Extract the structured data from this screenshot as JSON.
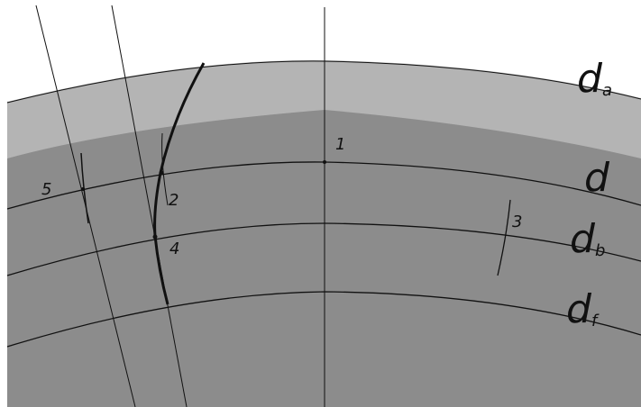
{
  "point_labels": {
    "p1": "1",
    "p2": "2",
    "p3": "3",
    "p4": "4",
    "p5": "5"
  },
  "circle_labels": {
    "tip": {
      "main": "d",
      "sub": "a"
    },
    "pitch": {
      "main": "d",
      "sub": ""
    },
    "base": {
      "main": "d",
      "sub": "b"
    },
    "root": {
      "main": "d",
      "sub": "f"
    }
  },
  "colors": {
    "background": "#ffffff",
    "tip_band": "#b4b4b4",
    "body": "#8c8c8c",
    "lines": "#111111"
  }
}
